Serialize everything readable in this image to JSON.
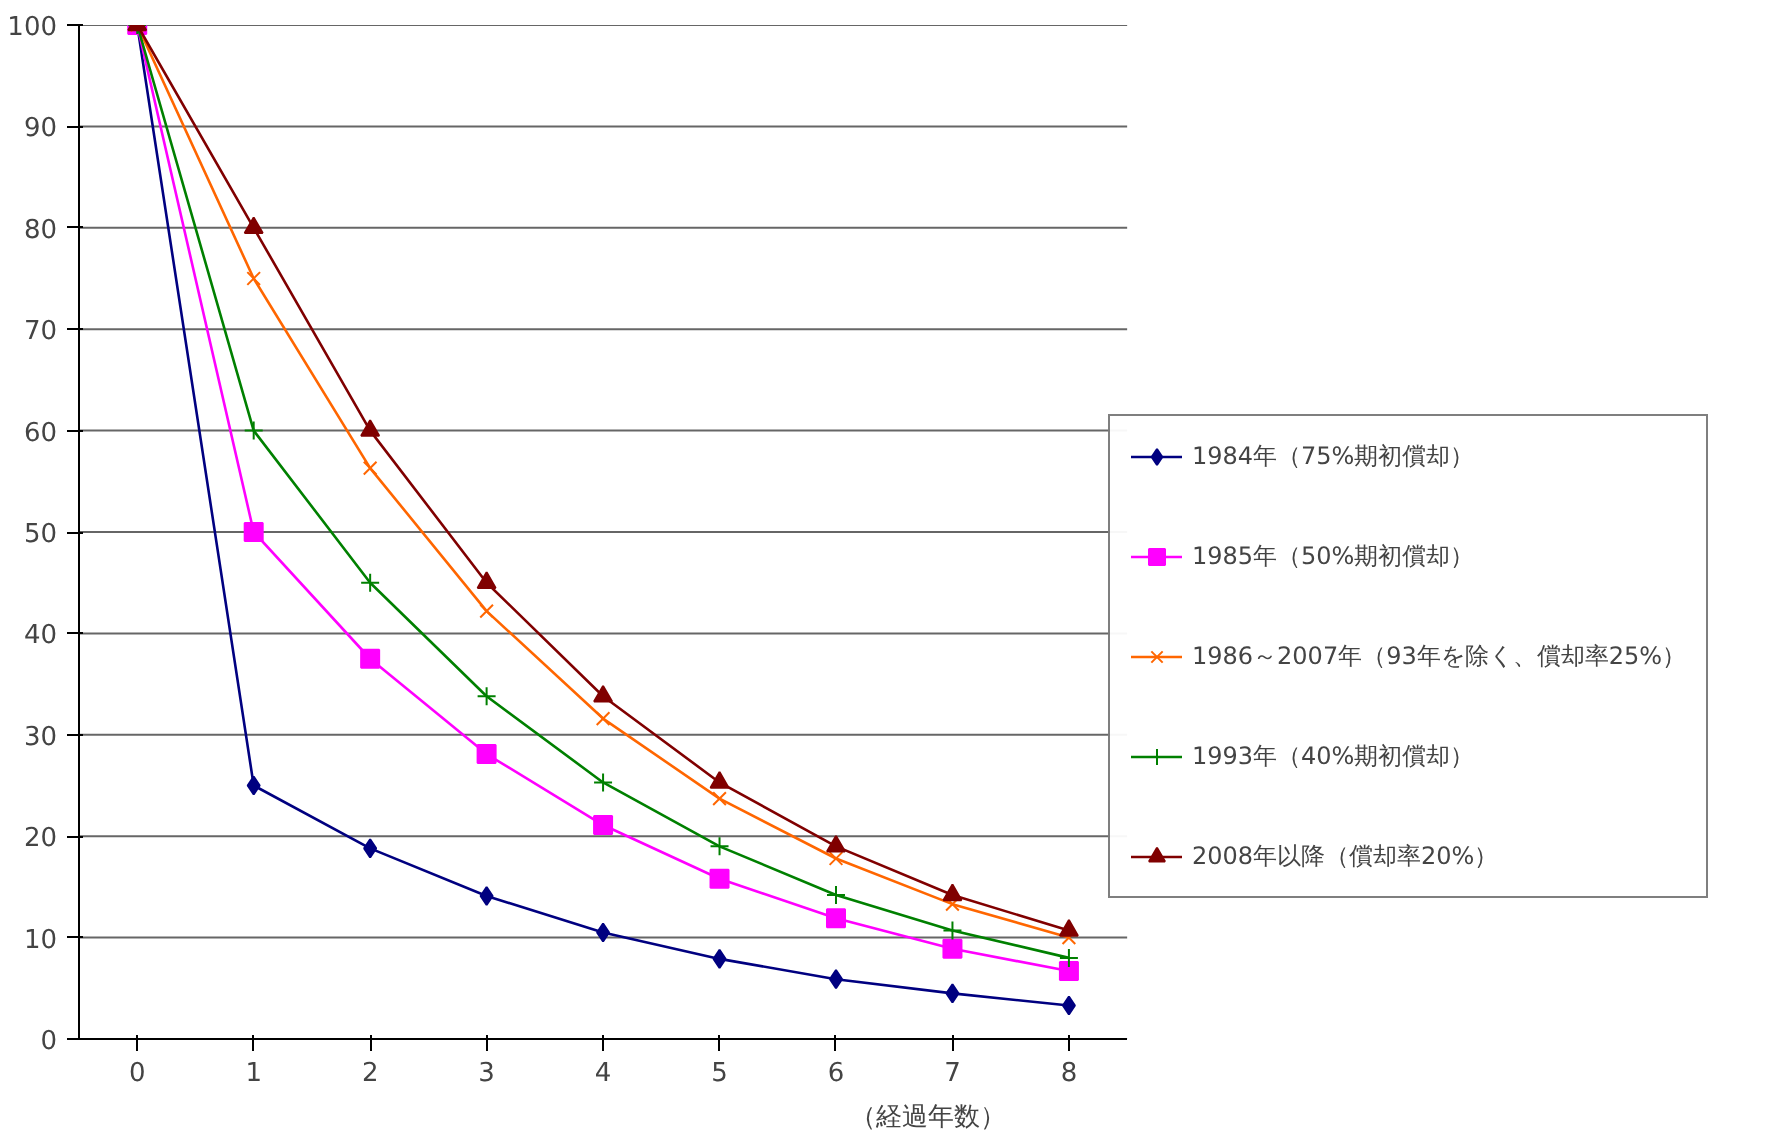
{
  "chart_data": {
    "type": "line",
    "xlabel": "（経過年数）",
    "categories": [
      "0",
      "1",
      "2",
      "3",
      "4",
      "5",
      "6",
      "7",
      "8"
    ],
    "ylim": [
      0,
      100
    ],
    "yticks": [
      0,
      10,
      20,
      30,
      40,
      50,
      60,
      70,
      80,
      90,
      100
    ],
    "grid": "y",
    "legend": "right",
    "line_style": "solid",
    "series": [
      {
        "name": "1984年（75%期初償却）",
        "color": "#000080",
        "marker": "diamond",
        "values": [
          100,
          25,
          18.8,
          14.1,
          10.5,
          7.9,
          5.9,
          4.5,
          3.3
        ]
      },
      {
        "name": "1985年（50%期初償却）",
        "color": "#ff00ff",
        "marker": "square",
        "values": [
          100,
          50,
          37.5,
          28.1,
          21.1,
          15.8,
          11.9,
          8.9,
          6.7
        ]
      },
      {
        "name": "1986～2007年（93年を除く、償却率25%）",
        "color": "#ff6600",
        "marker": "x",
        "values": [
          100,
          75,
          56.3,
          42.2,
          31.6,
          23.7,
          17.8,
          13.3,
          10.0
        ]
      },
      {
        "name": "1993年（40%期初償却）",
        "color": "#008000",
        "marker": "cross",
        "values": [
          100,
          60,
          45,
          33.8,
          25.3,
          19,
          14.2,
          10.7,
          8.0
        ]
      },
      {
        "name": "2008年以降（償却率20%）",
        "color": "#800000",
        "marker": "triangle",
        "values": [
          100,
          80,
          60,
          45,
          33.8,
          25.3,
          19,
          14.2,
          10.7
        ]
      }
    ]
  }
}
